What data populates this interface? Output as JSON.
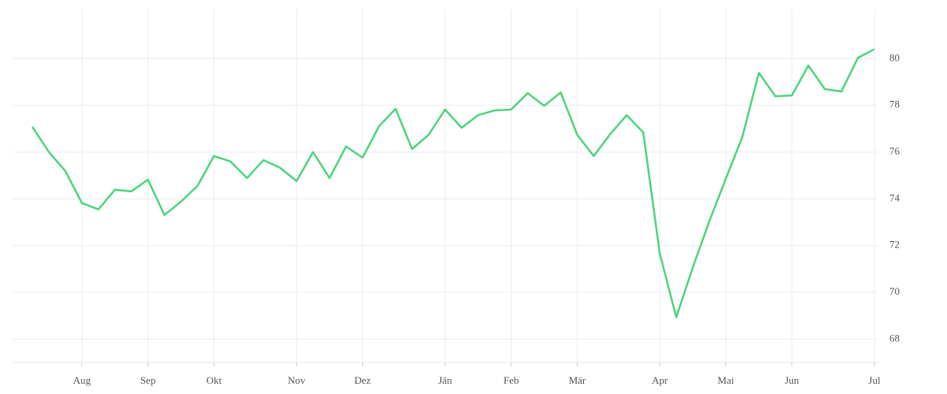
{
  "chart_data": {
    "type": "line",
    "categories": [
      null,
      null,
      null,
      "Aug",
      null,
      null,
      null,
      "Sep",
      null,
      null,
      null,
      "Okt",
      null,
      null,
      null,
      null,
      "Nov",
      null,
      null,
      null,
      "Dez",
      null,
      null,
      null,
      null,
      "Jän",
      null,
      null,
      null,
      "Feb",
      null,
      null,
      null,
      "Mär",
      null,
      null,
      null,
      null,
      "Apr",
      null,
      null,
      null,
      "Mai",
      null,
      null,
      null,
      "Jun",
      null,
      null,
      null,
      null,
      "Jul"
    ],
    "values": [
      77.08,
      76.0,
      75.19,
      73.82,
      73.55,
      74.39,
      74.32,
      74.82,
      73.31,
      73.88,
      74.55,
      75.83,
      75.6,
      74.89,
      75.66,
      75.33,
      74.76,
      76.0,
      74.89,
      76.24,
      75.76,
      77.11,
      77.85,
      76.13,
      76.74,
      77.82,
      77.04,
      77.58,
      77.78,
      77.82,
      78.52,
      77.98,
      78.55,
      76.74,
      75.83,
      76.77,
      77.58,
      76.84,
      71.66,
      68.94,
      71.06,
      73.04,
      74.86,
      76.64,
      79.39,
      78.39,
      78.42,
      79.7,
      78.69,
      78.59,
      80.03,
      80.4
    ],
    "color": "#4cd47c",
    "ylim": [
      67.0,
      82.1
    ],
    "yticks": [
      68,
      70,
      72,
      74,
      76,
      78,
      80
    ],
    "grid": true,
    "y_axis_side": "right"
  }
}
